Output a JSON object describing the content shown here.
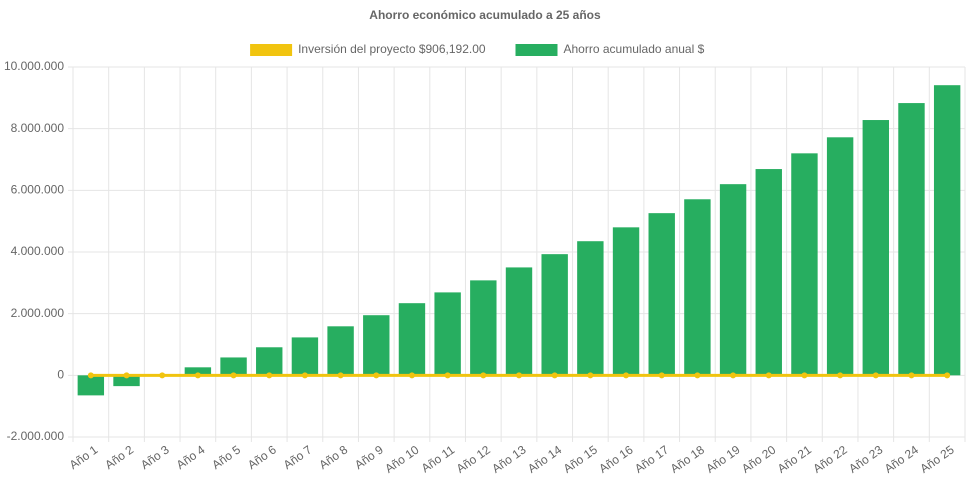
{
  "chart_data": {
    "type": "bar",
    "title": "Ahorro económico acumulado a 25 años",
    "categories": [
      "Año 1",
      "Año 2",
      "Año 3",
      "Año 4",
      "Año 5",
      "Año 6",
      "Año 7",
      "Año 8",
      "Año 9",
      "Año 10",
      "Año 11",
      "Año 12",
      "Año 13",
      "Año 14",
      "Año 15",
      "Año 16",
      "Año 17",
      "Año 18",
      "Año 19",
      "Año 20",
      "Año 21",
      "Año 22",
      "Año 23",
      "Año 24",
      "Año 25"
    ],
    "series": [
      {
        "name": "Inversión del proyecto $906,192.00",
        "type": "line",
        "color": "#f1c40f",
        "values": [
          0,
          0,
          0,
          0,
          0,
          0,
          0,
          0,
          0,
          0,
          0,
          0,
          0,
          0,
          0,
          0,
          0,
          0,
          0,
          0,
          0,
          0,
          0,
          0,
          0
        ]
      },
      {
        "name": "Ahorro acumulado anual $",
        "type": "bar",
        "color": "#27ae60",
        "values": [
          -650000,
          -350000,
          0,
          260000,
          580000,
          910000,
          1230000,
          1590000,
          1950000,
          2340000,
          2690000,
          3080000,
          3500000,
          3930000,
          4350000,
          4800000,
          5260000,
          5710000,
          6200000,
          6690000,
          7200000,
          7720000,
          8280000,
          8830000,
          9410000
        ]
      }
    ],
    "ylim": [
      -2000000,
      10000000
    ],
    "yticks": [
      {
        "value": -2000000,
        "label": "-2.000.000"
      },
      0,
      {
        "value": 2000000,
        "label": "2.000.000"
      },
      {
        "value": 4000000,
        "label": "4.000.000"
      },
      {
        "value": 6000000,
        "label": "6.000.000"
      },
      {
        "value": 8000000,
        "label": "8.000.000"
      },
      {
        "value": 10000000,
        "label": "10.000.000"
      }
    ],
    "grid": true,
    "legend": "top"
  }
}
